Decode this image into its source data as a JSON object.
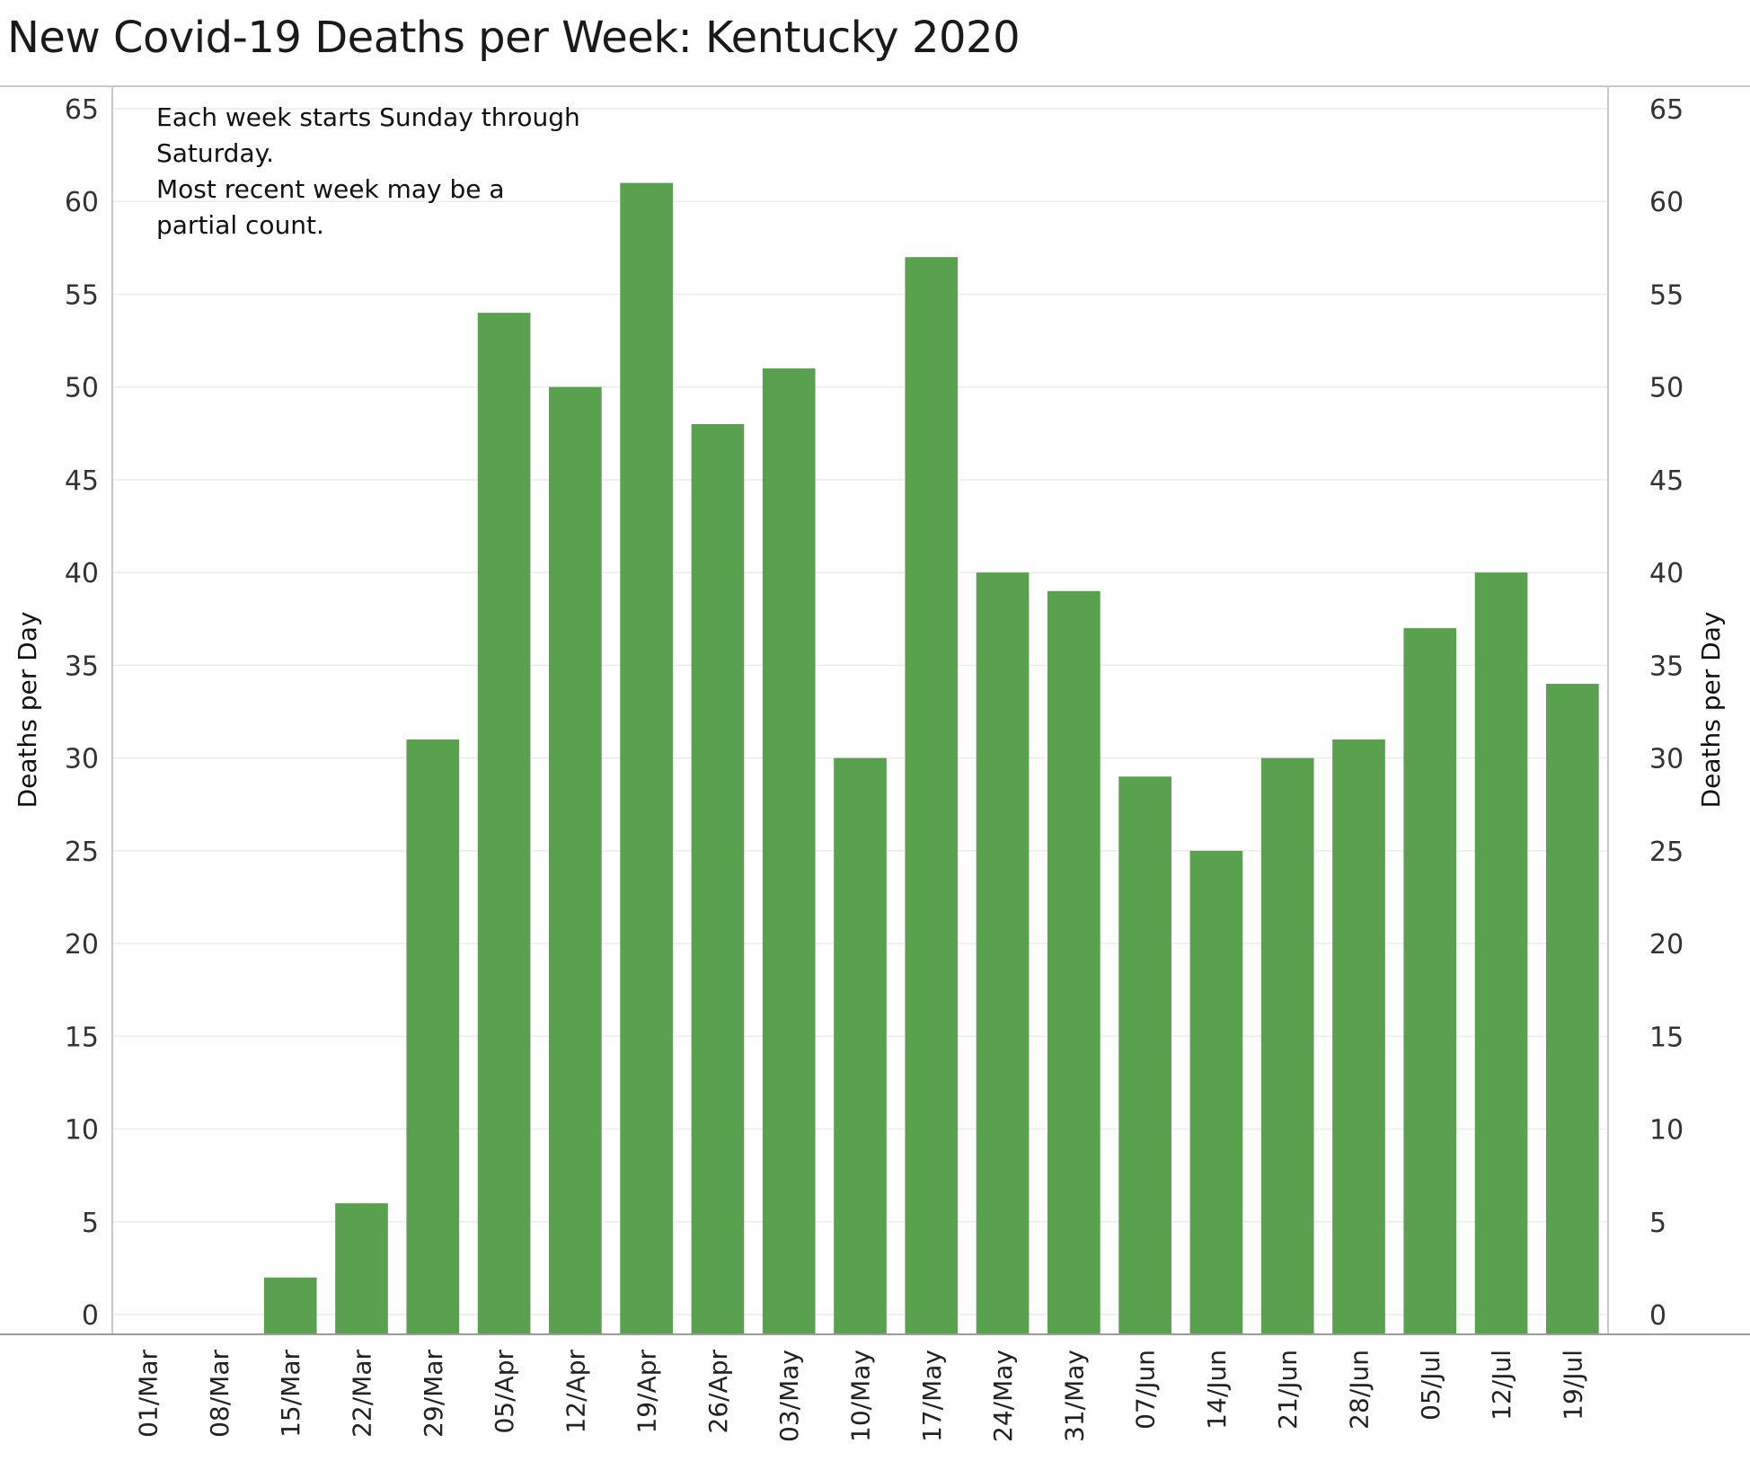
{
  "chart_data": {
    "type": "bar",
    "title": "New Covid-19 Deaths per Week:  Kentucky 2020",
    "xlabel": "",
    "ylabel": "Deaths per Day",
    "ylabel_right": "Deaths per Day",
    "ylim": [
      0,
      65
    ],
    "yticks": [
      0,
      5,
      10,
      15,
      20,
      25,
      30,
      35,
      40,
      45,
      50,
      55,
      60,
      65
    ],
    "grid": true,
    "legend": "none",
    "bar_color": "#59a14f",
    "annotation": [
      "Each week starts Sunday through",
      "Saturday.",
      "Most recent week may be a",
      "partial count."
    ],
    "categories": [
      "01/Mar",
      "08/Mar",
      "15/Mar",
      "22/Mar",
      "29/Mar",
      "05/Apr",
      "12/Apr",
      "19/Apr",
      "26/Apr",
      "03/May",
      "10/May",
      "17/May",
      "24/May",
      "31/May",
      "07/Jun",
      "14/Jun",
      "21/Jun",
      "28/Jun",
      "05/Jul",
      "12/Jul",
      "19/Jul"
    ],
    "values": [
      0,
      0,
      2,
      6,
      31,
      54,
      50,
      61,
      48,
      51,
      30,
      57,
      40,
      39,
      29,
      25,
      30,
      31,
      37,
      40,
      34
    ]
  }
}
